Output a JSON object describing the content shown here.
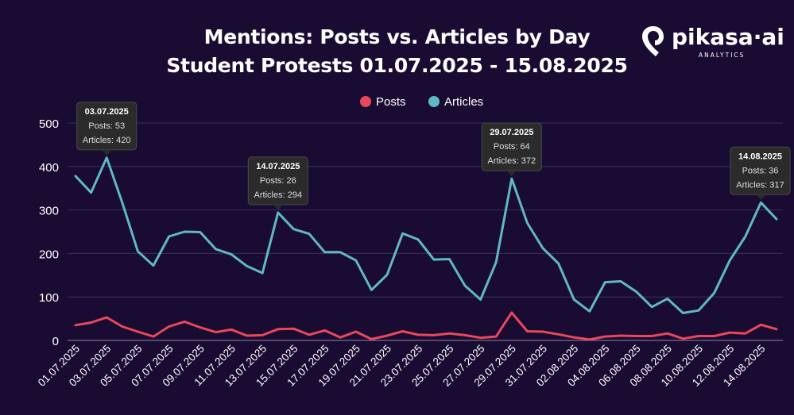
{
  "brand": {
    "name": "pikasa·ai",
    "tagline": "ANALYTICS",
    "colors": {
      "background": "#1a0b33",
      "posts": "#e8485a",
      "articles": "#5fb8c4",
      "tooltip_bg": "#2b2b2b"
    }
  },
  "chart_data": {
    "type": "line",
    "title": "Mentions: Posts vs. Articles by Day",
    "subtitle": "Student Protests 01.07.2025 - 15.08.2025",
    "xlabel": "",
    "ylabel": "",
    "ylim": [
      0,
      500
    ],
    "yticks": [
      0,
      100,
      200,
      300,
      400,
      500
    ],
    "grid": true,
    "legend_position": "top-center",
    "x": [
      "01.07.2025",
      "02.07.2025",
      "03.07.2025",
      "04.07.2025",
      "05.07.2025",
      "06.07.2025",
      "07.07.2025",
      "08.07.2025",
      "09.07.2025",
      "10.07.2025",
      "11.07.2025",
      "12.07.2025",
      "13.07.2025",
      "14.07.2025",
      "15.07.2025",
      "16.07.2025",
      "17.07.2025",
      "18.07.2025",
      "19.07.2025",
      "20.07.2025",
      "21.07.2025",
      "22.07.2025",
      "23.07.2025",
      "24.07.2025",
      "25.07.2025",
      "26.07.2025",
      "27.07.2025",
      "28.07.2025",
      "29.07.2025",
      "30.07.2025",
      "31.07.2025",
      "01.08.2025",
      "02.08.2025",
      "03.08.2025",
      "04.08.2025",
      "05.08.2025",
      "06.08.2025",
      "07.08.2025",
      "08.08.2025",
      "09.08.2025",
      "10.08.2025",
      "11.08.2025",
      "12.08.2025",
      "13.08.2025",
      "14.08.2025",
      "15.08.2025"
    ],
    "xtick_labels": [
      "01.07.2025",
      "03.07.2025",
      "05.07.2025",
      "07.07.2025",
      "09.07.2025",
      "11.07.2025",
      "13.07.2025",
      "15.07.2025",
      "17.07.2025",
      "19.07.2025",
      "21.07.2025",
      "23.07.2025",
      "25.07.2025",
      "27.07.2025",
      "29.07.2025",
      "31.07.2025",
      "02.08.2025",
      "04.08.2025",
      "06.08.2025",
      "08.08.2025",
      "10.08.2025",
      "12.08.2025",
      "14.08.2025"
    ],
    "series": [
      {
        "name": "Posts",
        "color": "#e8485a",
        "values": [
          35,
          41,
          53,
          32,
          20,
          9,
          32,
          43,
          30,
          19,
          25,
          11,
          12,
          26,
          27,
          13,
          23,
          7,
          20,
          3,
          11,
          21,
          13,
          12,
          16,
          12,
          6,
          9,
          64,
          21,
          20,
          14,
          7,
          2,
          9,
          11,
          10,
          10,
          16,
          4,
          10,
          10,
          18,
          16,
          36,
          26
        ]
      },
      {
        "name": "Articles",
        "color": "#5fb8c4",
        "values": [
          378,
          340,
          420,
          317,
          205,
          172,
          239,
          250,
          249,
          210,
          198,
          171,
          155,
          294,
          256,
          245,
          203,
          203,
          184,
          116,
          151,
          246,
          232,
          186,
          187,
          126,
          94,
          180,
          372,
          270,
          212,
          177,
          94,
          67,
          134,
          136,
          112,
          77,
          96,
          63,
          69,
          109,
          184,
          239,
          317,
          279
        ]
      }
    ],
    "annotations": [
      {
        "index": 2,
        "date": "03.07.2025",
        "posts_label": "Posts: 53",
        "articles_label": "Articles: 420"
      },
      {
        "index": 13,
        "date": "14.07.2025",
        "posts_label": "Posts: 26",
        "articles_label": "Articles: 294"
      },
      {
        "index": 28,
        "date": "29.07.2025",
        "posts_label": "Posts: 64",
        "articles_label": "Articles: 372"
      },
      {
        "index": 44,
        "date": "14.08.2025",
        "posts_label": "Posts: 36",
        "articles_label": "Articles: 317"
      }
    ]
  }
}
